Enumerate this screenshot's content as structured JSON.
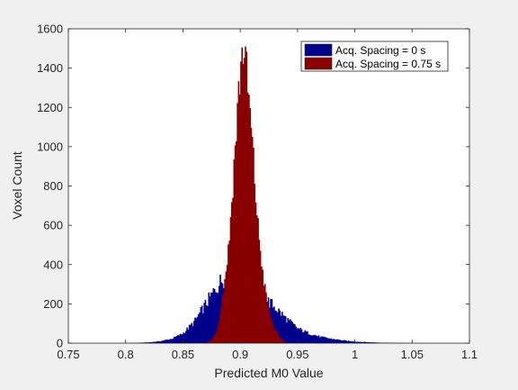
{
  "chart_data": {
    "type": "histogram",
    "title": "",
    "xlabel": "Predicted M0 Value",
    "ylabel": "Voxel Count",
    "xlim": [
      0.75,
      1.1
    ],
    "ylim": [
      0,
      1600
    ],
    "xticks": [
      "0.75",
      "0.8",
      "0.85",
      "0.9",
      "0.95",
      "1",
      "1.05",
      "1.1"
    ],
    "yticks": [
      "0",
      "200",
      "400",
      "600",
      "800",
      "1000",
      "1200",
      "1400",
      "1600"
    ],
    "grid": false,
    "legend_position": "top-right",
    "series": [
      {
        "name": "Acq. Spacing = 0 s",
        "color": "#00008b",
        "points": [
          [
            0.8,
            0
          ],
          [
            0.82,
            4
          ],
          [
            0.83,
            10
          ],
          [
            0.84,
            22
          ],
          [
            0.85,
            50
          ],
          [
            0.86,
            110
          ],
          [
            0.87,
            200
          ],
          [
            0.88,
            290
          ],
          [
            0.885,
            330
          ],
          [
            0.89,
            345
          ],
          [
            0.895,
            330
          ],
          [
            0.9,
            320
          ],
          [
            0.905,
            305
          ],
          [
            0.91,
            300
          ],
          [
            0.915,
            270
          ],
          [
            0.92,
            235
          ],
          [
            0.93,
            185
          ],
          [
            0.94,
            125
          ],
          [
            0.95,
            75
          ],
          [
            0.96,
            50
          ],
          [
            0.97,
            32
          ],
          [
            0.98,
            22
          ],
          [
            0.99,
            14
          ],
          [
            1.0,
            8
          ],
          [
            1.02,
            3
          ],
          [
            1.05,
            0
          ]
        ]
      },
      {
        "name": "Acq. Spacing = 0.75 s",
        "color": "#880000",
        "points": [
          [
            0.87,
            0
          ],
          [
            0.875,
            15
          ],
          [
            0.88,
            70
          ],
          [
            0.885,
            250
          ],
          [
            0.89,
            500
          ],
          [
            0.895,
            950
          ],
          [
            0.9,
            1400
          ],
          [
            0.903,
            1530
          ],
          [
            0.905,
            1400
          ],
          [
            0.91,
            1050
          ],
          [
            0.915,
            620
          ],
          [
            0.92,
            330
          ],
          [
            0.925,
            160
          ],
          [
            0.93,
            70
          ],
          [
            0.935,
            25
          ],
          [
            0.94,
            0
          ]
        ]
      }
    ]
  }
}
